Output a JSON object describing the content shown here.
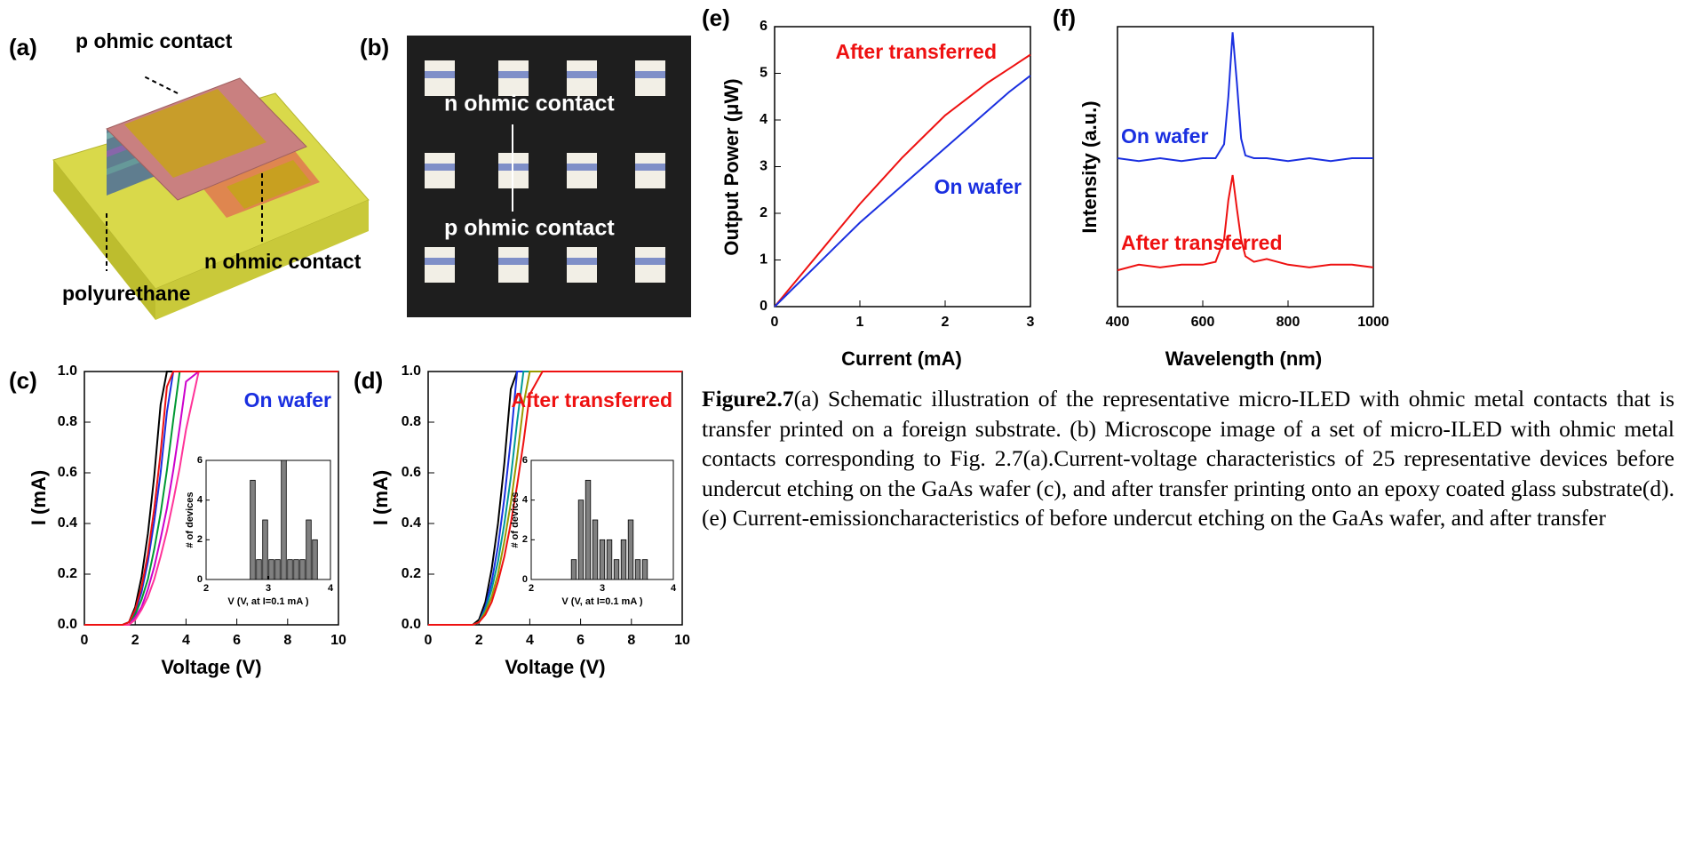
{
  "panels": {
    "a": {
      "label": "(a)",
      "p_contact": "p ohmic contact",
      "n_contact": "n ohmic contact",
      "substrate": "polyurethane"
    },
    "b": {
      "label": "(b)",
      "n_contact": "n ohmic contact",
      "p_contact": "p ohmic contact"
    }
  },
  "chart_data": [
    {
      "type": "line",
      "panel_label": "(c)",
      "x_label": "Voltage (V)",
      "y_label": "I (mA)",
      "xlim": [
        0,
        10
      ],
      "xticks": [
        0,
        2,
        4,
        6,
        8,
        10
      ],
      "ylim": [
        0,
        1
      ],
      "yticks": [
        {
          "value": 0,
          "label": "0.0"
        },
        {
          "value": 0.2,
          "label": "0.2"
        },
        {
          "value": 0.4,
          "label": "0.4"
        },
        {
          "value": 0.6,
          "label": "0.6"
        },
        {
          "value": 0.8,
          "label": "0.8"
        },
        {
          "value": 1,
          "label": "1.0"
        }
      ],
      "x": [
        0,
        1,
        1.5,
        1.75,
        2,
        2.25,
        2.5,
        2.75,
        3,
        3.25,
        3.5,
        3.75,
        4,
        4.5,
        10
      ],
      "series": [
        {
          "color": "#000000",
          "values": [
            0,
            0,
            0,
            0.01,
            0.07,
            0.19,
            0.36,
            0.59,
            0.87,
            1,
            1,
            1,
            1,
            1,
            1
          ]
        },
        {
          "color": "#1a2fe0",
          "values": [
            0,
            0,
            0,
            0.01,
            0.05,
            0.13,
            0.25,
            0.41,
            0.6,
            0.84,
            1,
            1,
            1,
            1,
            1
          ]
        },
        {
          "color": "#009933",
          "values": [
            0,
            0,
            0,
            0.01,
            0.04,
            0.1,
            0.18,
            0.3,
            0.44,
            0.61,
            0.81,
            1,
            1,
            1,
            1
          ]
        },
        {
          "color": "#cc00cc",
          "values": [
            0,
            0,
            0,
            0,
            0.03,
            0.07,
            0.14,
            0.23,
            0.34,
            0.46,
            0.61,
            0.78,
            0.96,
            1,
            1
          ]
        },
        {
          "color": "#ff3399",
          "values": [
            0,
            0,
            0,
            0,
            0.02,
            0.06,
            0.11,
            0.18,
            0.27,
            0.37,
            0.49,
            0.62,
            0.77,
            1,
            1
          ]
        },
        {
          "color": "#ee1111",
          "values": [
            0,
            0,
            0,
            0.01,
            0.06,
            0.15,
            0.28,
            0.46,
            0.68,
            0.94,
            1,
            1,
            1,
            1,
            1
          ]
        }
      ],
      "annotations": [
        {
          "text": "On wafer",
          "color": "#1a2fe0"
        }
      ],
      "inset": {
        "type": "bar",
        "x_label": "V (V, at I=0.1 mA )",
        "y_label": "# of devices",
        "xlim": [
          2,
          4
        ],
        "xticks": [
          2,
          3,
          4
        ],
        "ylim": [
          0,
          6
        ],
        "yticks": [
          0,
          2,
          4,
          6
        ],
        "color": "#808080",
        "x": [
          2.75,
          2.85,
          2.95,
          3.05,
          3.15,
          3.25,
          3.35,
          3.45,
          3.55,
          3.65,
          3.75
        ],
        "values": [
          5,
          1,
          3,
          1,
          1,
          6,
          1,
          1,
          1,
          3,
          2
        ]
      }
    },
    {
      "type": "line",
      "panel_label": "(d)",
      "x_label": "Voltage (V)",
      "y_label": "I (mA)",
      "xlim": [
        0,
        10
      ],
      "xticks": [
        0,
        2,
        4,
        6,
        8,
        10
      ],
      "ylim": [
        0,
        1
      ],
      "yticks": [
        {
          "value": 0,
          "label": "0.0"
        },
        {
          "value": 0.2,
          "label": "0.2"
        },
        {
          "value": 0.4,
          "label": "0.4"
        },
        {
          "value": 0.6,
          "label": "0.6"
        },
        {
          "value": 0.8,
          "label": "0.8"
        },
        {
          "value": 1,
          "label": "1.0"
        }
      ],
      "x": [
        0,
        1,
        1.5,
        1.75,
        2,
        2.25,
        2.5,
        2.75,
        3,
        3.25,
        3.5,
        3.75,
        4,
        4.5,
        10
      ],
      "series": [
        {
          "color": "#000000",
          "values": [
            0,
            0,
            0,
            0,
            0.02,
            0.09,
            0.22,
            0.4,
            0.64,
            0.93,
            1,
            1,
            1,
            1,
            1
          ]
        },
        {
          "color": "#1a2fe0",
          "values": [
            0,
            0,
            0,
            0,
            0.01,
            0.07,
            0.17,
            0.31,
            0.5,
            0.73,
            1,
            1,
            1,
            1,
            1
          ]
        },
        {
          "color": "#009999",
          "values": [
            0,
            0,
            0,
            0,
            0.01,
            0.06,
            0.14,
            0.25,
            0.4,
            0.58,
            0.8,
            1,
            1,
            1,
            1
          ]
        },
        {
          "color": "#999900",
          "values": [
            0,
            0,
            0,
            0,
            0.01,
            0.05,
            0.11,
            0.2,
            0.33,
            0.48,
            0.66,
            0.87,
            1,
            1,
            1
          ]
        },
        {
          "color": "#ee1111",
          "values": [
            0,
            0,
            0,
            0,
            0.01,
            0.04,
            0.09,
            0.17,
            0.27,
            0.4,
            0.55,
            0.72,
            0.91,
            1,
            1
          ]
        }
      ],
      "annotations": [
        {
          "text": "After transferred",
          "color": "#ee1111"
        }
      ],
      "inset": {
        "type": "bar",
        "x_label": "V (V, at I=0.1 mA )",
        "y_label": "# of devices",
        "xlim": [
          2,
          4
        ],
        "xticks": [
          2,
          3,
          4
        ],
        "ylim": [
          0,
          6
        ],
        "yticks": [
          0,
          2,
          4,
          6
        ],
        "color": "#808080",
        "x": [
          2.6,
          2.7,
          2.8,
          2.9,
          3.0,
          3.1,
          3.2,
          3.3,
          3.4,
          3.5,
          3.6
        ],
        "values": [
          1,
          4,
          5,
          3,
          2,
          2,
          1,
          2,
          3,
          1,
          1
        ]
      }
    },
    {
      "type": "line",
      "panel_label": "(e)",
      "x_label": "Current (mA)",
      "y_label": "Output Power (μW)",
      "xlim": [
        0,
        3
      ],
      "xticks": [
        0,
        1,
        2,
        3
      ],
      "ylim": [
        0,
        6
      ],
      "yticks": [
        0,
        1,
        2,
        3,
        4,
        5,
        6
      ],
      "x": [
        0,
        0.25,
        0.5,
        0.75,
        1,
        1.25,
        1.5,
        1.75,
        2,
        2.25,
        2.5,
        2.75,
        3
      ],
      "series": [
        {
          "color": "#ee1111",
          "values": [
            0,
            0.55,
            1.1,
            1.65,
            2.2,
            2.7,
            3.2,
            3.65,
            4.1,
            4.45,
            4.8,
            5.1,
            5.4
          ]
        },
        {
          "color": "#1a2fe0",
          "values": [
            0,
            0.45,
            0.9,
            1.35,
            1.8,
            2.2,
            2.6,
            3.0,
            3.4,
            3.8,
            4.2,
            4.6,
            4.95
          ]
        }
      ],
      "annotations": [
        {
          "text": "After transferred",
          "color": "#ee1111"
        },
        {
          "text": "On wafer",
          "color": "#1a2fe0"
        }
      ]
    },
    {
      "type": "line",
      "panel_label": "(f)",
      "x_label": "Wavelength (nm)",
      "y_label": "Intensity (a.u.)",
      "xlim": [
        400,
        1000
      ],
      "xticks": [
        400,
        600,
        800,
        1000
      ],
      "ylim": [
        0,
        1
      ],
      "x": [
        400,
        450,
        500,
        550,
        600,
        630,
        650,
        660,
        670,
        680,
        690,
        700,
        720,
        750,
        800,
        850,
        900,
        950,
        1000
      ],
      "series": [
        {
          "color": "#1a2fe0",
          "values": [
            0.53,
            0.52,
            0.53,
            0.52,
            0.53,
            0.53,
            0.58,
            0.75,
            0.98,
            0.8,
            0.6,
            0.54,
            0.53,
            0.53,
            0.52,
            0.53,
            0.52,
            0.53,
            0.53
          ]
        },
        {
          "color": "#ee1111",
          "values": [
            0.13,
            0.15,
            0.14,
            0.15,
            0.15,
            0.16,
            0.24,
            0.38,
            0.47,
            0.35,
            0.24,
            0.18,
            0.16,
            0.17,
            0.15,
            0.14,
            0.15,
            0.15,
            0.14
          ]
        }
      ],
      "annotations": [
        {
          "text": "On wafer",
          "color": "#1a2fe0"
        },
        {
          "text": "After transferred",
          "color": "#ee1111"
        }
      ]
    }
  ],
  "caption": {
    "label": "Figure2.7",
    "text": "(a) Schematic illustration of the representative micro-ILED with ohmic metal contacts that is transfer printed on a foreign substrate. (b) Microscope image of a set of micro-ILED with ohmic metal contacts corresponding to Fig. 2.7(a).Current-voltage characteristics of 25 representative devices before undercut etching on the GaAs wafer (c), and after transfer printing onto an epoxy coated glass substrate(d). (e) Current-emissioncharacteristics of before undercut etching on the GaAs wafer, and after transfer"
  }
}
